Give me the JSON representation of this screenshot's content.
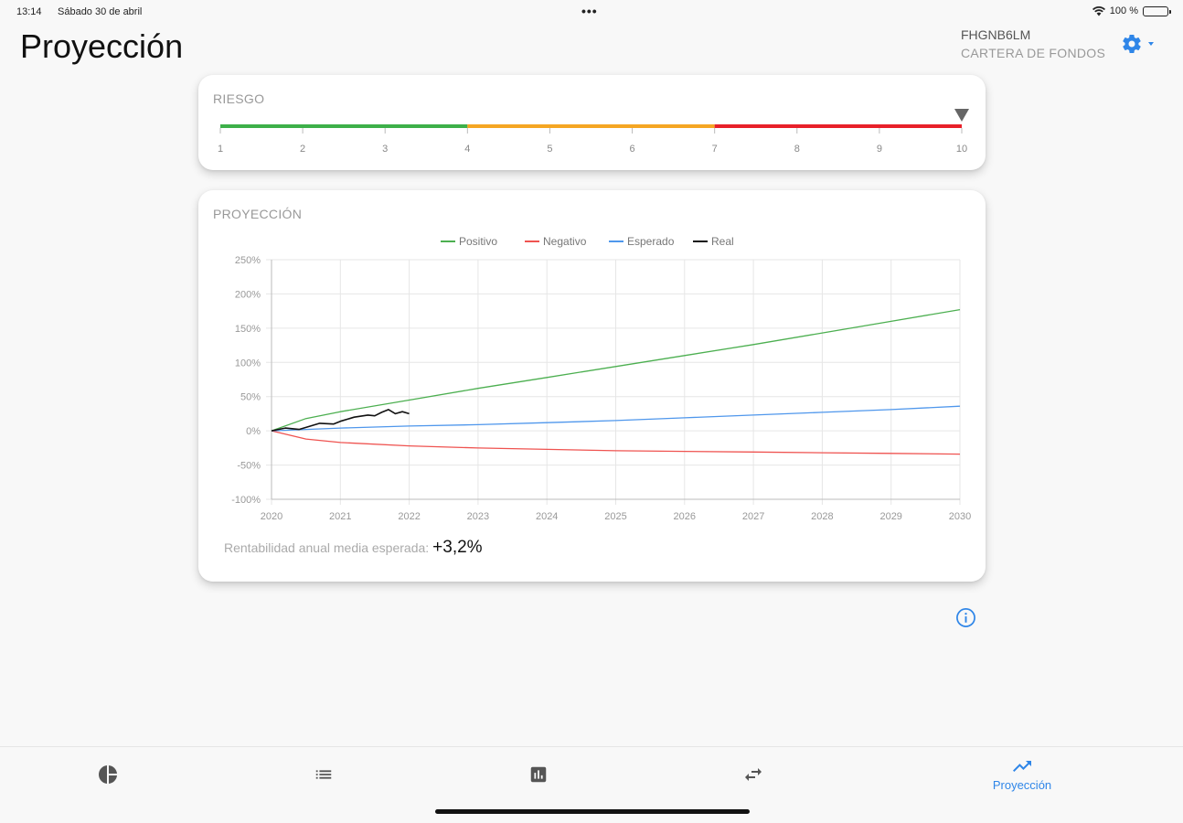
{
  "status_bar": {
    "time": "13:14",
    "date": "Sábado 30 de abril",
    "battery": "100 %"
  },
  "header": {
    "title": "Proyección",
    "account_code": "FHGNB6LM",
    "account_type": "CARTERA DE FONDOS",
    "settings_icon": "gear-icon",
    "accent_color": "#2f86e8"
  },
  "risk": {
    "label": "RIESGO",
    "ticks": [
      "1",
      "2",
      "3",
      "4",
      "5",
      "6",
      "7",
      "8",
      "9",
      "10"
    ],
    "current_level": 10,
    "segments": [
      {
        "from": 1,
        "to": 4,
        "color": "#3db049"
      },
      {
        "from": 4,
        "to": 7,
        "color": "#f5a623"
      },
      {
        "from": 7,
        "to": 10,
        "color": "#e8202a"
      }
    ]
  },
  "projection": {
    "label": "PROYECCIÓN",
    "stat_label": "Rentabilidad anual media esperada:",
    "stat_value": "+3,2%"
  },
  "chart_data": {
    "type": "line",
    "legend": [
      "Positivo",
      "Negativo",
      "Esperado",
      "Real"
    ],
    "legend_position": "top-center",
    "grid": true,
    "ylim": [
      -100,
      250
    ],
    "yticks": [
      "250%",
      "200%",
      "150%",
      "100%",
      "50%",
      "0%",
      "-50%",
      "-100%"
    ],
    "ytick_values": [
      250,
      200,
      150,
      100,
      50,
      0,
      -50,
      -100
    ],
    "xlim": [
      2020,
      2030
    ],
    "xticks": [
      "2020",
      "2021",
      "2022",
      "2023",
      "2024",
      "2025",
      "2026",
      "2027",
      "2028",
      "2029",
      "2030"
    ],
    "series": [
      {
        "name": "Positivo",
        "color": "#4caf50",
        "x": [
          2020,
          2020.5,
          2021,
          2022,
          2023,
          2024,
          2025,
          2026,
          2027,
          2028,
          2029,
          2030
        ],
        "y": [
          0,
          18,
          28,
          45,
          62,
          78,
          94,
          110,
          126,
          143,
          160,
          177
        ]
      },
      {
        "name": "Negativo",
        "color": "#ef5350",
        "x": [
          2020,
          2020.5,
          2021,
          2022,
          2023,
          2024,
          2025,
          2026,
          2027,
          2028,
          2029,
          2030
        ],
        "y": [
          0,
          -12,
          -17,
          -22,
          -25,
          -27,
          -29,
          -30,
          -31,
          -32,
          -33,
          -34
        ]
      },
      {
        "name": "Esperado",
        "color": "#4f97ec",
        "x": [
          2020,
          2021,
          2022,
          2023,
          2024,
          2025,
          2026,
          2027,
          2028,
          2029,
          2030
        ],
        "y": [
          0,
          4,
          7,
          9,
          12,
          15,
          19,
          23,
          27,
          31,
          36
        ]
      },
      {
        "name": "Real",
        "color": "#111111",
        "x": [
          2020,
          2020.2,
          2020.4,
          2020.5,
          2020.7,
          2020.9,
          2021.0,
          2021.2,
          2021.4,
          2021.5,
          2021.6,
          2021.7,
          2021.8,
          2021.9,
          2022.0
        ],
        "y": [
          0,
          4,
          2,
          5,
          11,
          10,
          14,
          20,
          23,
          22,
          27,
          31,
          25,
          28,
          25
        ]
      }
    ]
  },
  "info_icon": "info-icon",
  "bottom_nav": {
    "items": [
      {
        "icon": "pie-chart-icon",
        "label": ""
      },
      {
        "icon": "list-icon",
        "label": ""
      },
      {
        "icon": "bar-chart-icon",
        "label": ""
      },
      {
        "icon": "swap-icon",
        "label": ""
      },
      {
        "icon": "trending-up-icon",
        "label": "Proyección",
        "active": true
      }
    ]
  }
}
